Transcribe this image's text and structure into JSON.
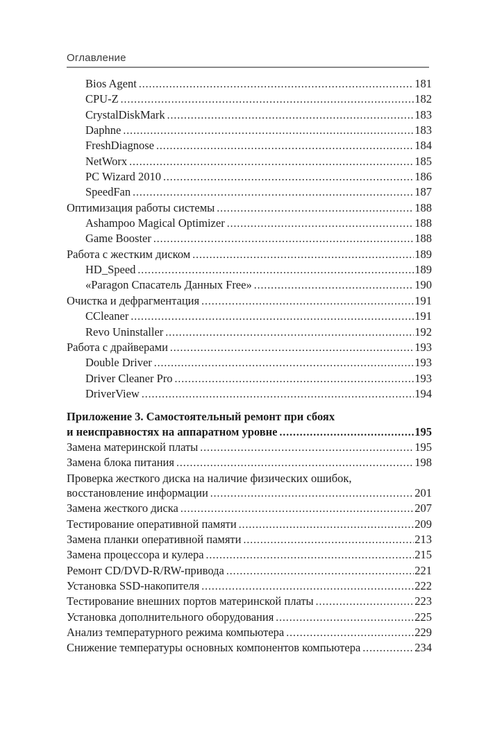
{
  "page": {
    "header_title": "Оглавление"
  },
  "colors": {
    "background": "#ffffff",
    "text": "#1e1e1e",
    "header_text": "#3a3a3a",
    "rule": "#8a8a8a"
  },
  "toc": {
    "rows": [
      {
        "text": "Bios Agent",
        "page": "181",
        "level": 1
      },
      {
        "text": "CPU-Z",
        "page": "182",
        "level": 1
      },
      {
        "text": "CrystalDiskMark",
        "page": "183",
        "level": 1
      },
      {
        "text": "Daphne",
        "page": "183",
        "level": 1
      },
      {
        "text": "FreshDiagnose",
        "page": "184",
        "level": 1
      },
      {
        "text": "NetWorx",
        "page": "185",
        "level": 1
      },
      {
        "text": "PC Wizard 2010",
        "page": "186",
        "level": 1
      },
      {
        "text": "SpeedFan",
        "page": "187",
        "level": 1
      },
      {
        "text": "Оптимизация работы системы",
        "page": "188",
        "level": 0
      },
      {
        "text": "Ashampoo Magical Optimizer",
        "page": "188",
        "level": 1
      },
      {
        "text": "Game Booster",
        "page": "188",
        "level": 1
      },
      {
        "text": "Работа с жестким диском",
        "page": "189",
        "level": 0
      },
      {
        "text": "HD_Speed",
        "page": "189",
        "level": 1
      },
      {
        "text": "«Paragon Спасатель Данных Free»",
        "page": "190",
        "level": 1
      },
      {
        "text": "Очистка и дефрагментация",
        "page": "191",
        "level": 0
      },
      {
        "text": "CCleaner",
        "page": "191",
        "level": 1
      },
      {
        "text": "Revo Uninstaller",
        "page": "192",
        "level": 1
      },
      {
        "text": "Работа с драйверами",
        "page": "193",
        "level": 0
      },
      {
        "text": "Double Driver",
        "page": "193",
        "level": 1
      },
      {
        "text": "Driver Cleaner Pro",
        "page": "193",
        "level": 1
      },
      {
        "text": "DriverView",
        "page": "194",
        "level": 1
      },
      {
        "text": "Приложение 3. Самостоятельный ремонт при сбоях",
        "page": "",
        "level": 0,
        "bold": true,
        "gap": true
      },
      {
        "text": "и неисправностях на аппаратном уровне",
        "page": "195",
        "level": 0,
        "bold": true
      },
      {
        "text": "Замена материнской платы",
        "page": "195",
        "level": 0
      },
      {
        "text": "Замена блока питания",
        "page": "198",
        "level": 0
      },
      {
        "text": "Проверка жесткого диска на наличие физических ошибок,",
        "page": "",
        "level": 0
      },
      {
        "text": "восстановление информации",
        "page": "201",
        "level": 0
      },
      {
        "text": "Замена жесткого диска",
        "page": "207",
        "level": 0
      },
      {
        "text": "Тестирование оперативной памяти",
        "page": "209",
        "level": 0
      },
      {
        "text": "Замена планки оперативной памяти",
        "page": "213",
        "level": 0
      },
      {
        "text": "Замена процессора и кулера",
        "page": "215",
        "level": 0
      },
      {
        "text": "Ремонт CD/DVD-R/RW-привода",
        "page": "221",
        "level": 0
      },
      {
        "text": "Установка SSD-накопителя",
        "page": "222",
        "level": 0
      },
      {
        "text": "Тестирование внешних портов материнской платы",
        "page": "223",
        "level": 0
      },
      {
        "text": "Установка дополнительного оборудования",
        "page": "225",
        "level": 0
      },
      {
        "text": "Анализ температурного режима компьютера",
        "page": "229",
        "level": 0
      },
      {
        "text": "Снижение температуры основных компонентов компьютера",
        "page": "234",
        "level": 0
      }
    ]
  }
}
